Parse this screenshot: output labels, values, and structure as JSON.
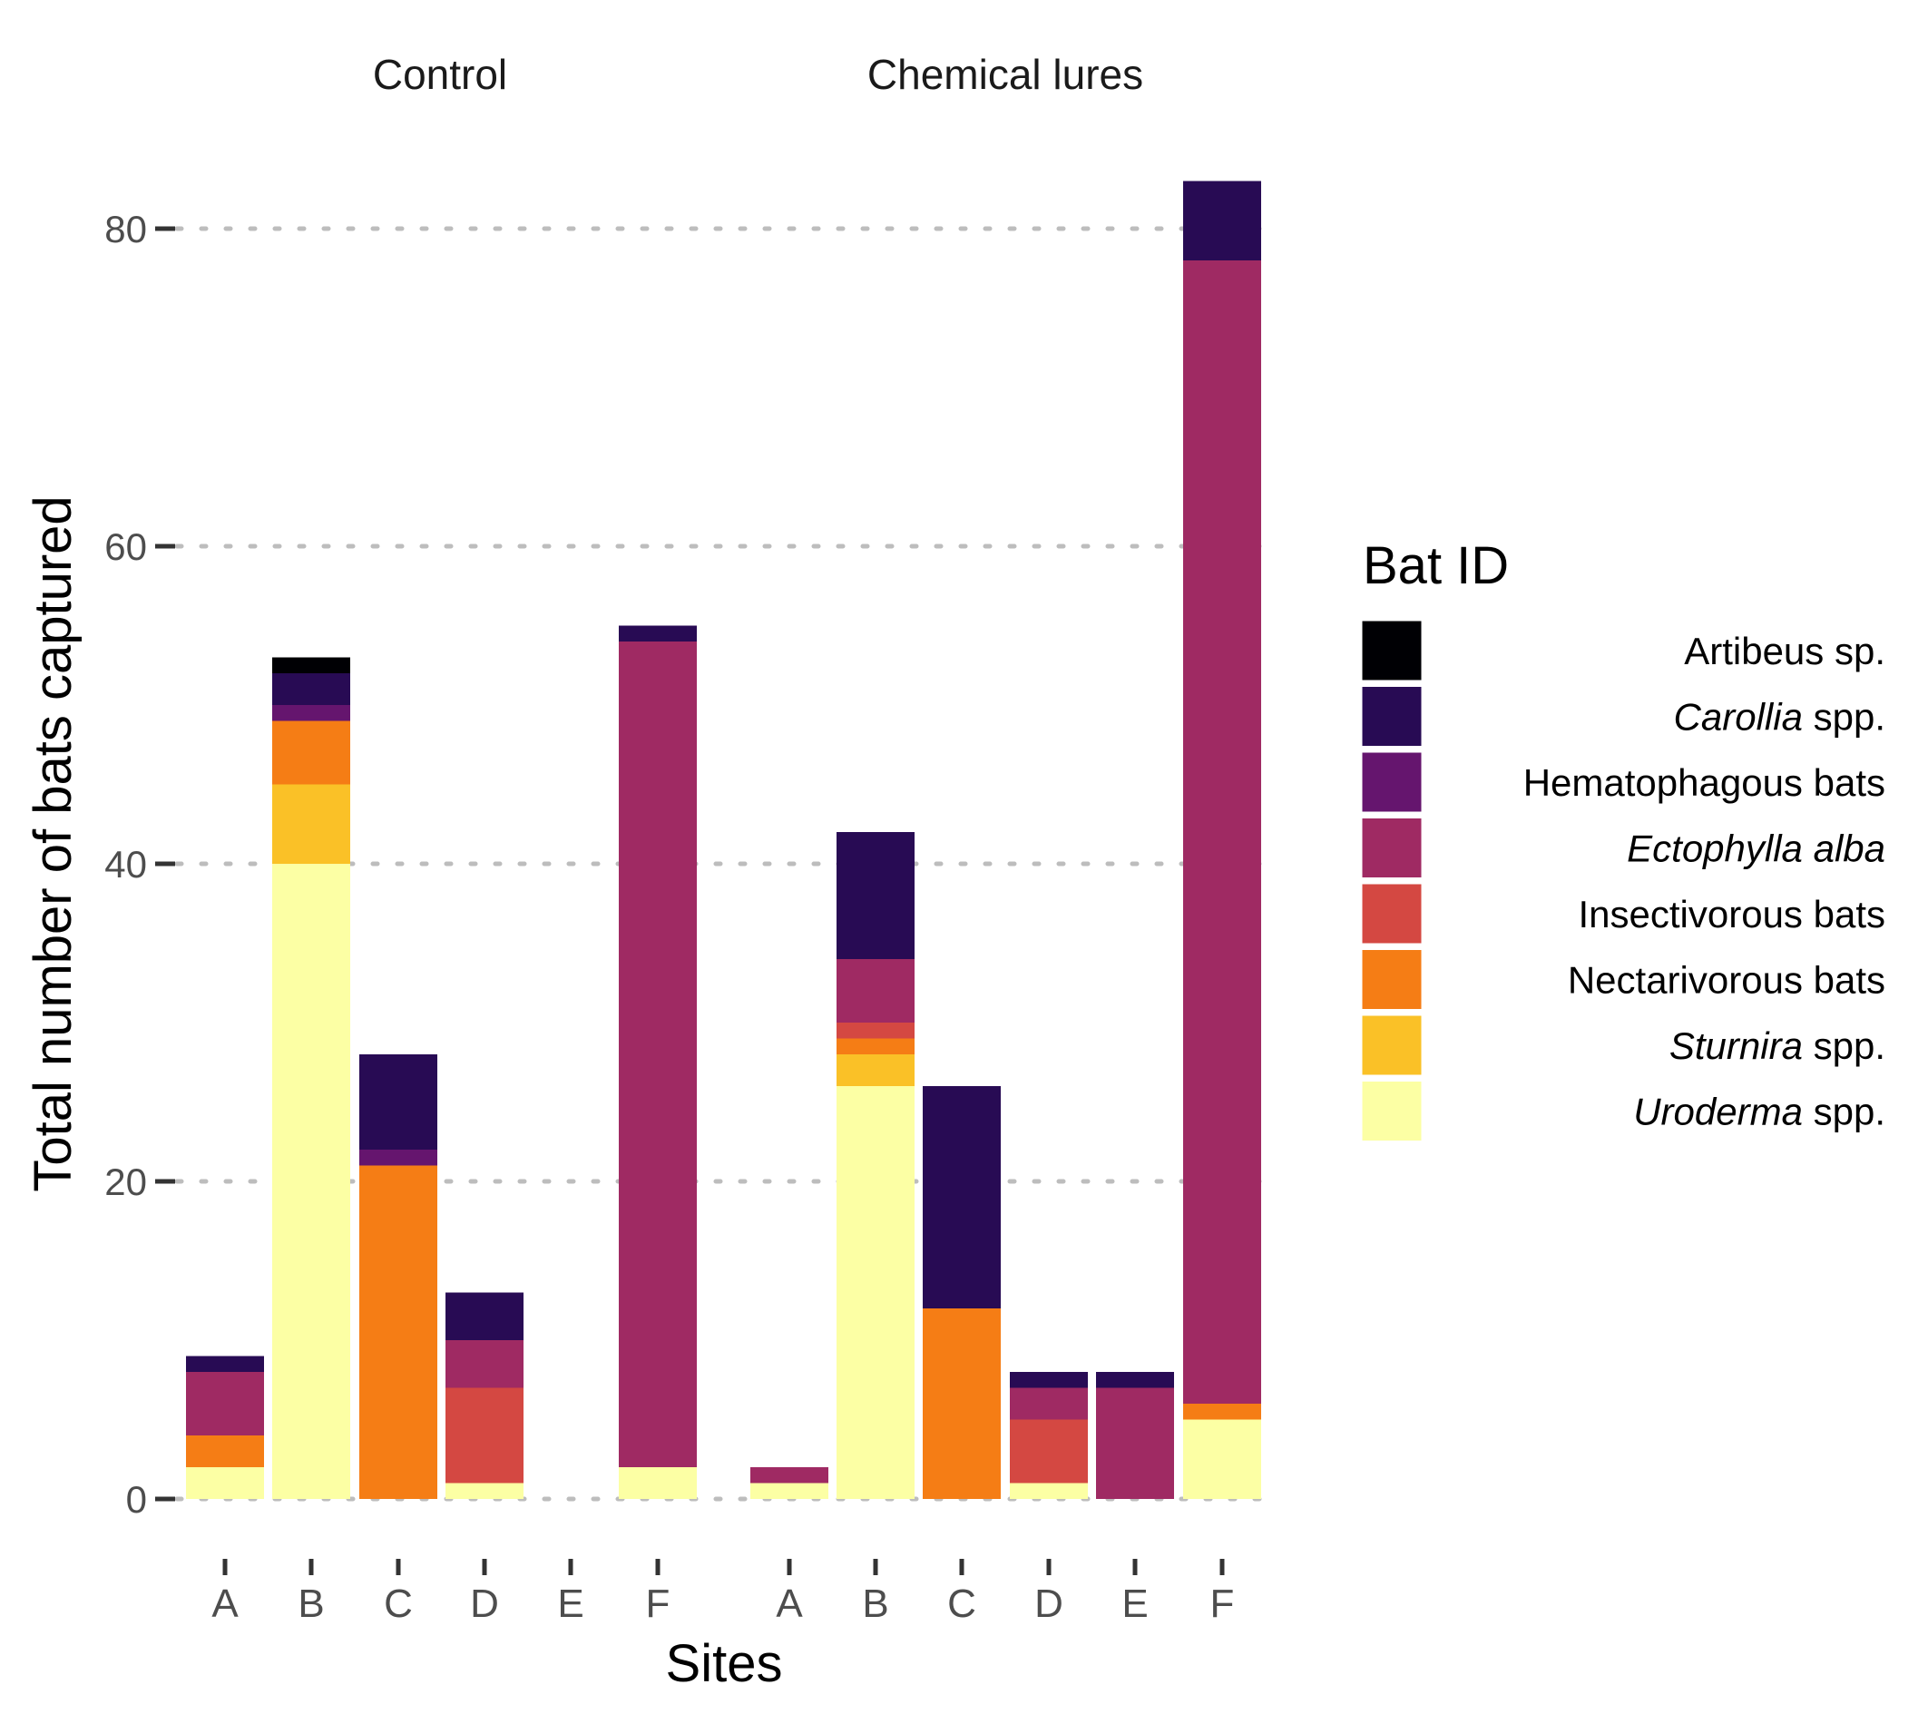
{
  "chart_data": {
    "type": "bar",
    "stacked": true,
    "xlabel": "Sites",
    "ylabel": "Total number of bats captured",
    "ylim": [
      0,
      86
    ],
    "yticks": [
      0,
      20,
      40,
      60,
      80
    ],
    "grid": "horizontal dotted",
    "legend": {
      "title": "Bat ID",
      "placement": "right",
      "entries": [
        {
          "key": "artibeus",
          "parts": [
            {
              "text": "Artibeus sp.",
              "italic": false
            }
          ],
          "color": "#000004"
        },
        {
          "key": "carollia",
          "parts": [
            {
              "text": "Carollia",
              "italic": true
            },
            {
              "text": " spp.",
              "italic": false
            }
          ],
          "color": "#280B54"
        },
        {
          "key": "hematophagous",
          "parts": [
            {
              "text": "Hematophagous bats",
              "italic": false
            }
          ],
          "color": "#65156E"
        },
        {
          "key": "ectophylla",
          "parts": [
            {
              "text": "Ectophylla alba",
              "italic": true
            }
          ],
          "color": "#9F2A63"
        },
        {
          "key": "insectivorous",
          "parts": [
            {
              "text": "Insectivorous bats",
              "italic": false
            }
          ],
          "color": "#D44842"
        },
        {
          "key": "nectarivorous",
          "parts": [
            {
              "text": "Nectarivorous bats",
              "italic": false
            }
          ],
          "color": "#F57D15"
        },
        {
          "key": "sturnira",
          "parts": [
            {
              "text": "Sturnira",
              "italic": true
            },
            {
              "text": " spp.",
              "italic": false
            }
          ],
          "color": "#FAC127"
        },
        {
          "key": "uroderma",
          "parts": [
            {
              "text": "Uroderma",
              "italic": true
            },
            {
              "text": " spp.",
              "italic": false
            }
          ],
          "color": "#FCFFA4"
        }
      ]
    },
    "stack_order_bottom_to_top": [
      "uroderma",
      "sturnira",
      "nectarivorous",
      "insectivorous",
      "ectophylla",
      "hematophagous",
      "carollia",
      "artibeus"
    ],
    "panels": [
      {
        "title": "Control",
        "categories": [
          "A",
          "B",
          "C",
          "D",
          "E",
          "F"
        ],
        "series": {
          "uroderma": [
            2,
            40,
            0,
            1,
            0,
            2
          ],
          "sturnira": [
            0,
            5,
            0,
            0,
            0,
            0
          ],
          "nectarivorous": [
            2,
            4,
            21,
            0,
            0,
            0
          ],
          "insectivorous": [
            0,
            0,
            0,
            6,
            0,
            0
          ],
          "ectophylla": [
            4,
            0,
            0,
            3,
            0,
            52
          ],
          "hematophagous": [
            0,
            1,
            1,
            0,
            0,
            0
          ],
          "carollia": [
            1,
            2,
            6,
            3,
            0,
            1
          ],
          "artibeus": [
            0,
            1,
            0,
            0,
            0,
            0
          ]
        }
      },
      {
        "title": "Chemical lures",
        "categories": [
          "A",
          "B",
          "C",
          "D",
          "E",
          "F"
        ],
        "series": {
          "uroderma": [
            1,
            26,
            0,
            1,
            0,
            5
          ],
          "sturnira": [
            0,
            2,
            0,
            0,
            0,
            0
          ],
          "nectarivorous": [
            0,
            1,
            12,
            0,
            0,
            1
          ],
          "insectivorous": [
            0,
            1,
            0,
            4,
            0,
            0
          ],
          "ectophylla": [
            1,
            4,
            0,
            2,
            7,
            72
          ],
          "hematophagous": [
            0,
            0,
            0,
            0,
            0,
            0
          ],
          "carollia": [
            0,
            8,
            14,
            1,
            1,
            5
          ],
          "artibeus": [
            0,
            0,
            0,
            0,
            0,
            0
          ]
        }
      }
    ]
  }
}
